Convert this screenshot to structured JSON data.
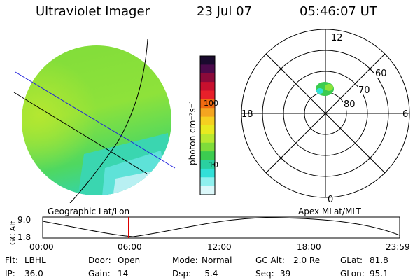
{
  "header": {
    "title": "Ultraviolet Imager",
    "date": "23 Jul 07",
    "time": "05:46:07 UT"
  },
  "colorbar": {
    "label": "photon cm⁻²s⁻¹",
    "ticks": [
      "100",
      "10"
    ],
    "colors": [
      "#1a0a2e",
      "#4b0a4b",
      "#8b0a3a",
      "#c8102e",
      "#e8202a",
      "#f06a10",
      "#f4a520",
      "#f5d020",
      "#e8ea20",
      "#b8e830",
      "#7fdc3a",
      "#3ccc50",
      "#2ad0a0",
      "#32e0d8",
      "#8ff0ee",
      "#dcf8fa"
    ]
  },
  "polar": {
    "mlt_labels": [
      "12",
      "18",
      "6",
      "0"
    ],
    "lat_labels": [
      "60",
      "70",
      "80"
    ]
  },
  "panel_labels": {
    "left": "Geographic Lat/Lon",
    "right": "Apex MLat/MLT"
  },
  "altitude_plot": {
    "ylabel": "GC Alt",
    "yticks": [
      "9.0",
      "1.8"
    ],
    "xticks": [
      "00:00",
      "06:00",
      "12:00",
      "18:00",
      "23:59"
    ],
    "marker_time_hours": 5.77
  },
  "info": {
    "row1": [
      {
        "key": "Flt:",
        "value": "LBHL"
      },
      {
        "key": "Door:",
        "value": "Open"
      },
      {
        "key": "Mode:",
        "value": "Normal"
      },
      {
        "key": "GC Alt:",
        "value": "2.0 Re"
      },
      {
        "key": "GLat:",
        "value": "81.8"
      }
    ],
    "row2": [
      {
        "key": "IP:",
        "value": "36.0"
      },
      {
        "key": "Gain:",
        "value": "14"
      },
      {
        "key": "Dsp:",
        "value": "-5.4"
      },
      {
        "key": "Seq:",
        "value": "39"
      },
      {
        "key": "GLon:",
        "value": "95.1"
      }
    ]
  }
}
